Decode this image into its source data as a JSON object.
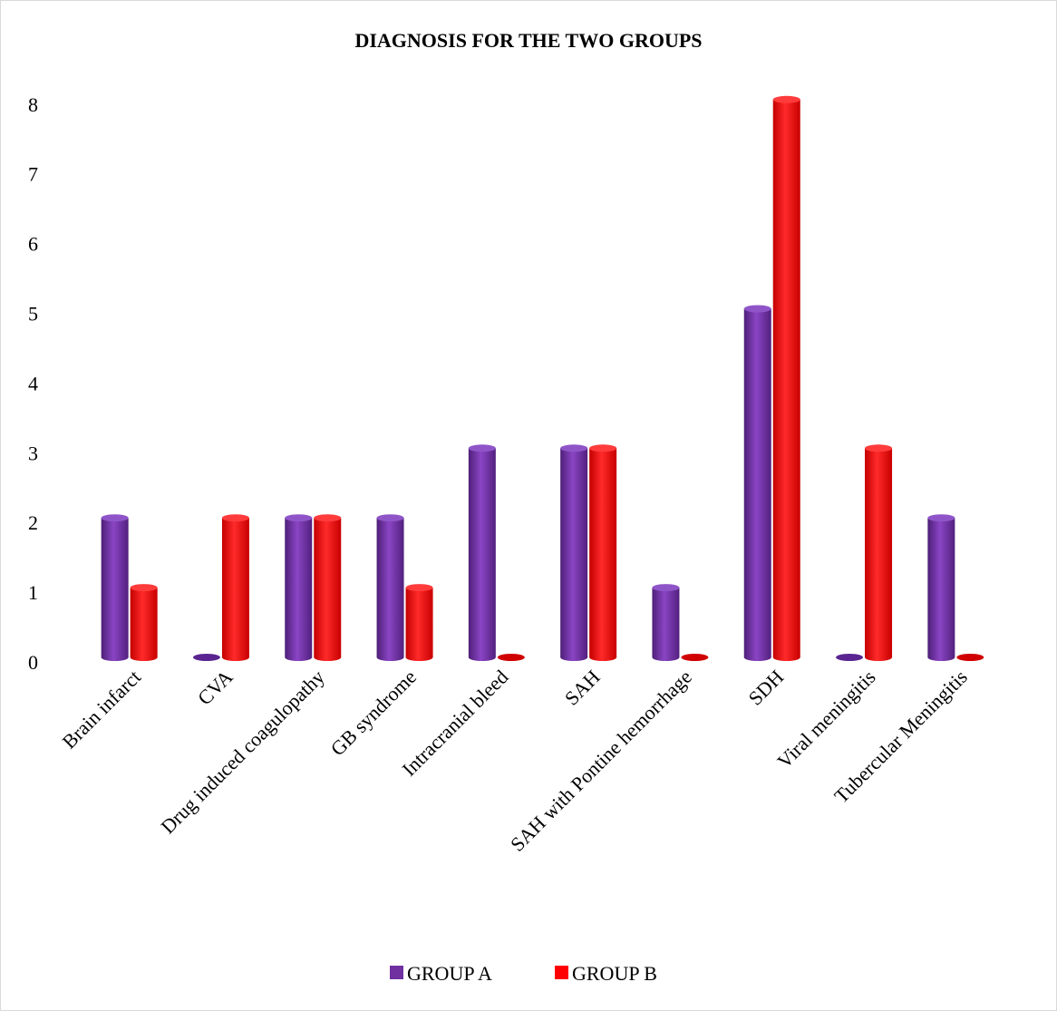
{
  "chart_data": {
    "type": "bar",
    "title": "DIAGNOSIS FOR THE TWO GROUPS",
    "xlabel": "",
    "ylabel": "",
    "ylim": [
      0,
      8
    ],
    "yticks": [
      0,
      1,
      2,
      3,
      4,
      5,
      6,
      7,
      8
    ],
    "grid": false,
    "legend_position": "bottom",
    "categories": [
      "Brain infarct",
      "CVA",
      "Drug induced coagulopathy",
      "GB syndrome",
      "Intracranial bleed",
      "SAH",
      "SAH with Pontine hemorrhage",
      "SDH",
      "Viral meningitis",
      "Tubercular Meningitis"
    ],
    "series": [
      {
        "name": "GROUP A",
        "color": "#7030a0",
        "values": [
          2,
          0,
          2,
          2,
          3,
          3,
          1,
          5,
          0,
          2
        ]
      },
      {
        "name": "GROUP B",
        "color": "#ff0000",
        "values": [
          1,
          2,
          2,
          1,
          0,
          3,
          0,
          8,
          3,
          0
        ]
      }
    ]
  }
}
